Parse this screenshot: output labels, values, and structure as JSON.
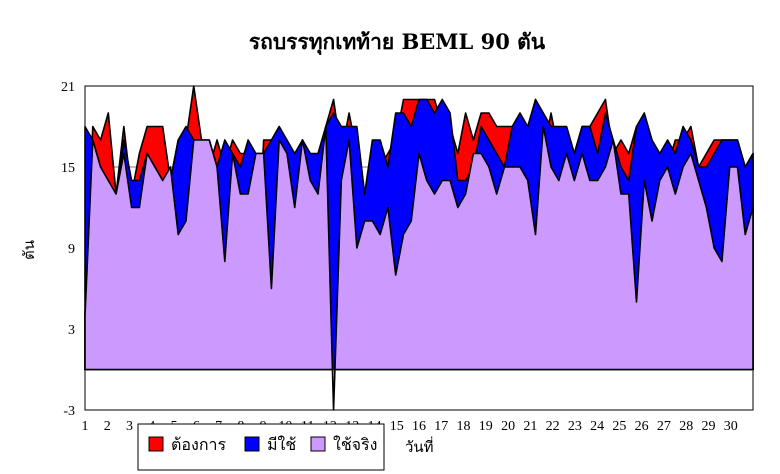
{
  "chart_data": {
    "type": "area",
    "title": "รถบรรทุกเทท้าย BEML 90 ตัน",
    "ylabel": "ตัน",
    "xlabel": "วันที่",
    "ylim": [
      -3,
      21
    ],
    "yticks": [
      -3,
      3,
      9,
      15,
      21
    ],
    "xticks": [
      "1",
      "2",
      "3",
      "4",
      "5",
      "6",
      "7",
      "8",
      "9",
      "10",
      "11",
      "12",
      "13",
      "14",
      "15",
      "16",
      "17",
      "18",
      "19",
      "20",
      "21",
      "22",
      "23",
      "24",
      "25",
      "26",
      "27",
      "28",
      "29",
      "30"
    ],
    "x_range": [
      1,
      31
    ],
    "grid": "horizontal",
    "legend_position": "bottom",
    "colors": {
      "need": "#ff0000",
      "available": "#0000ff",
      "used": "#cc99ff",
      "line": "#000000"
    },
    "series": [
      {
        "name": "ต้องการ",
        "values": [
          4,
          18,
          17,
          19,
          13,
          18,
          13,
          16,
          18,
          18,
          18,
          14,
          17,
          17,
          21,
          17,
          15,
          17,
          15,
          17,
          16,
          16,
          6,
          17,
          17,
          16,
          16,
          15,
          17,
          16,
          13,
          18,
          20,
          16,
          19,
          16,
          13,
          16,
          15,
          16,
          17,
          20,
          20,
          20,
          20,
          20,
          18,
          18,
          16,
          19,
          17,
          19,
          19,
          18,
          18,
          18,
          18,
          16,
          20,
          16,
          19,
          16,
          15,
          16,
          18,
          18,
          19,
          20,
          16,
          17,
          16,
          18,
          16,
          15,
          14,
          15,
          17,
          17,
          18,
          15,
          16,
          17,
          17,
          17,
          17,
          15,
          16
        ]
      },
      {
        "name": "มีใช้",
        "values": [
          18,
          17,
          15,
          13,
          13,
          17,
          14,
          14,
          16,
          15,
          14,
          14,
          17,
          18,
          17,
          17,
          17,
          15,
          17,
          16,
          15,
          17,
          16,
          16,
          17,
          18,
          17,
          16,
          17,
          16,
          16,
          18,
          19,
          18,
          18,
          18,
          13,
          17,
          17,
          15,
          19,
          19,
          18,
          20,
          20,
          19,
          20,
          19,
          14,
          14,
          15,
          18,
          17,
          16,
          15,
          18,
          19,
          18,
          20,
          19,
          18,
          18,
          18,
          16,
          18,
          18,
          16,
          19,
          17,
          15,
          14,
          18,
          19,
          17,
          16,
          17,
          16,
          18,
          17,
          15,
          15,
          16,
          17,
          17,
          17,
          15,
          16
        ]
      },
      {
        "name": "ใช้จริง",
        "values": [
          4,
          17,
          15,
          14,
          13,
          16,
          12,
          12,
          16,
          15,
          14,
          15,
          10,
          11,
          17,
          17,
          17,
          15,
          8,
          16,
          13,
          13,
          16,
          16,
          6,
          17,
          16,
          12,
          17,
          14,
          13,
          18,
          -3,
          14,
          17,
          9,
          11,
          11,
          10,
          12,
          7,
          10,
          11,
          16,
          14,
          13,
          14,
          14,
          12,
          13,
          16,
          16,
          15,
          13,
          15,
          15,
          15,
          14,
          10,
          18,
          15,
          14,
          16,
          14,
          16,
          14,
          14,
          15,
          17,
          13,
          13,
          5,
          14,
          11,
          14,
          15,
          13,
          15,
          16,
          14,
          12,
          9,
          8,
          15,
          15,
          10,
          12
        ]
      }
    ]
  }
}
